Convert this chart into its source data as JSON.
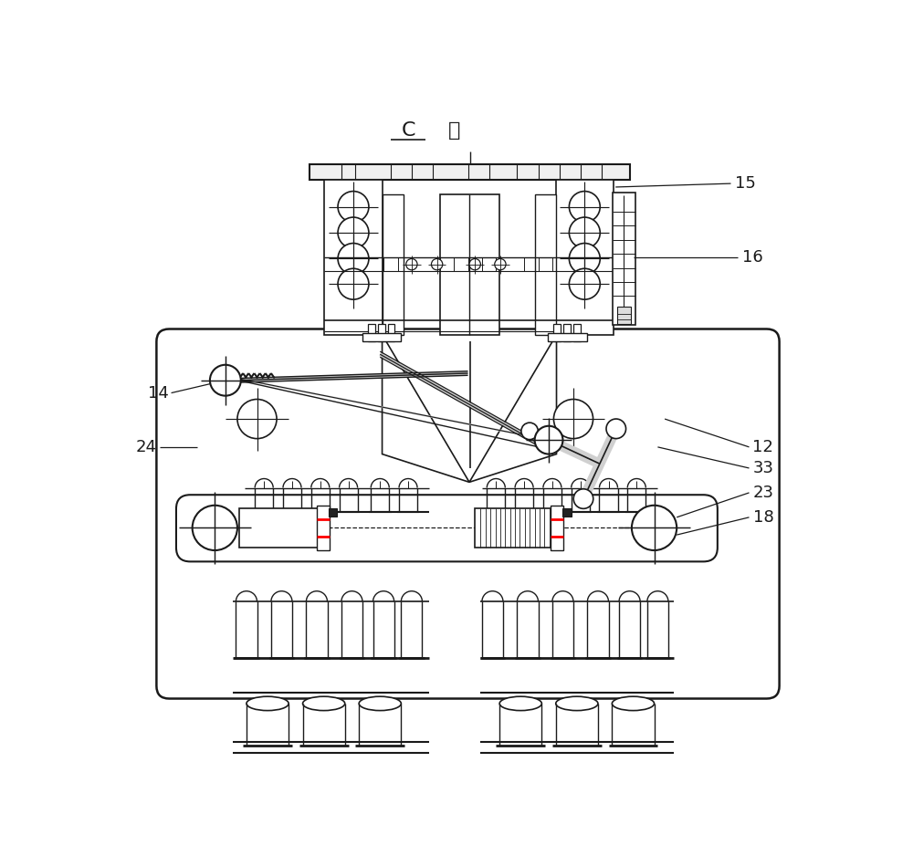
{
  "bg_color": "#ffffff",
  "line_color": "#1a1a1a",
  "title_C": "C",
  "title_xiang": "向",
  "labels": [
    "14",
    "15",
    "16",
    "24",
    "12",
    "33",
    "23",
    "18"
  ],
  "figsize": [
    10.0,
    9.38
  ],
  "dpi": 100
}
